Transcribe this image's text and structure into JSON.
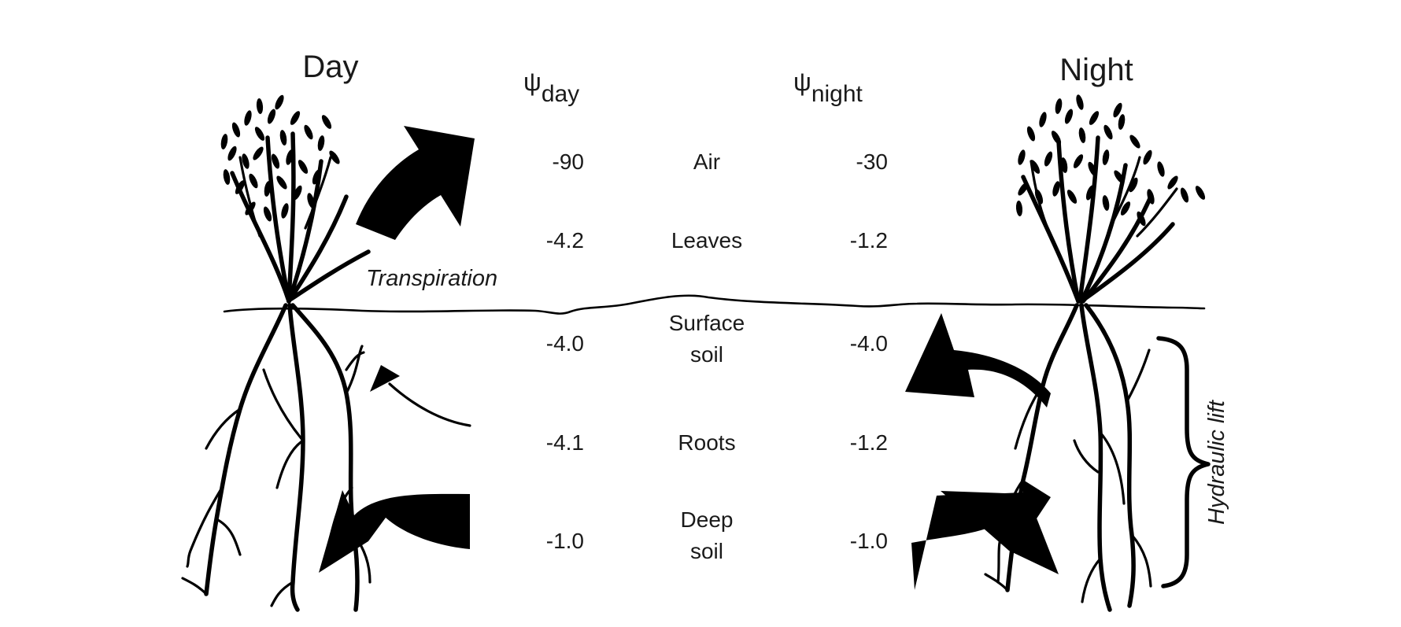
{
  "headings": {
    "day": "Day",
    "night": "Night"
  },
  "columns": {
    "day": {
      "symbol": "ψ",
      "subscript": "day"
    },
    "night": {
      "symbol": "ψ",
      "subscript": "night"
    }
  },
  "rows": [
    {
      "key": "air",
      "label_lines": [
        "Air"
      ],
      "day": "-90",
      "night": "-30"
    },
    {
      "key": "leaves",
      "label_lines": [
        "Leaves"
      ],
      "day": "-4.2",
      "night": "-1.2"
    },
    {
      "key": "surface-soil",
      "label_lines": [
        "Surface",
        "soil"
      ],
      "day": "-4.0",
      "night": "-4.0"
    },
    {
      "key": "roots",
      "label_lines": [
        "Roots"
      ],
      "day": "-4.1",
      "night": "-1.2"
    },
    {
      "key": "deep-soil",
      "label_lines": [
        "Deep",
        "soil"
      ],
      "day": "-1.0",
      "night": "-1.0"
    }
  ],
  "annotations": {
    "transpiration": "Transpiration",
    "hydraulic_lift": "Hydraulic lift"
  }
}
